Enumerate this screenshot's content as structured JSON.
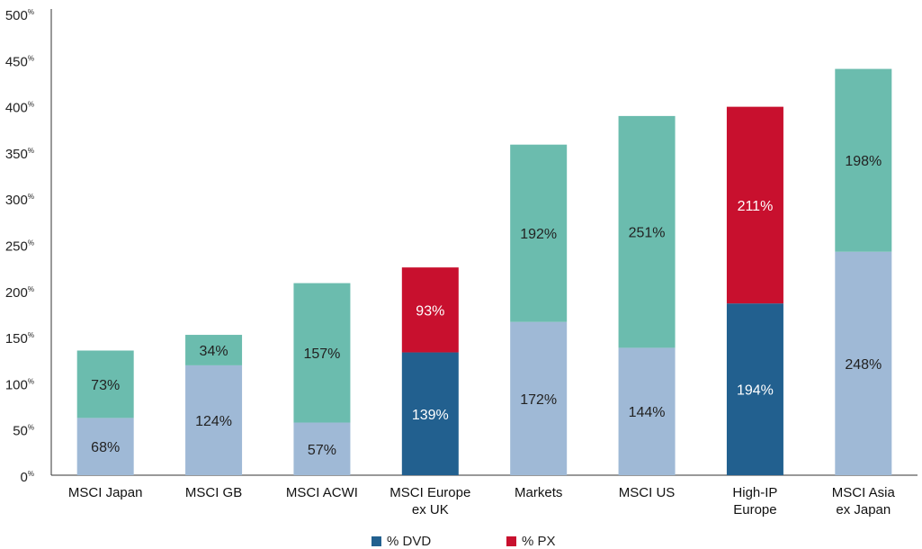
{
  "chart_data": {
    "type": "bar",
    "stacked": true,
    "categories": [
      [
        "MSCI Japan"
      ],
      [
        "MSCI GB"
      ],
      [
        "MSCI ACWI"
      ],
      [
        "MSCI Europe",
        "ex UK"
      ],
      [
        "Markets"
      ],
      [
        "MSCI US"
      ],
      [
        "High-IP",
        "Europe"
      ],
      [
        "MSCI Asia",
        "ex Japan"
      ]
    ],
    "bottom_values": [
      68,
      124,
      57,
      139,
      172,
      144,
      194,
      248
    ],
    "top_values": [
      73,
      34,
      157,
      93,
      192,
      251,
      211,
      198
    ],
    "bottom_labels": [
      "68%",
      "124%",
      "57%",
      "139%",
      "172%",
      "144%",
      "194%",
      "248%"
    ],
    "top_labels": [
      "73%",
      "34%",
      "157%",
      "93%",
      "192%",
      "251%",
      "211%",
      "198%"
    ],
    "bottom_totals_drawn": [
      62,
      119,
      57,
      133,
      166,
      138,
      186,
      242
    ],
    "totals_drawn": [
      135,
      152,
      208,
      225,
      358,
      389,
      399,
      440
    ],
    "highlight_indices": [
      3,
      6
    ],
    "colors": {
      "bottom": "#9fb9d6",
      "top": "#6bbcae",
      "bottom_highlight": "#22608f",
      "top_highlight": "#c8102e",
      "axis": "#333333"
    },
    "y_ticks": [
      "0",
      "50",
      "100",
      "150",
      "200",
      "250",
      "300",
      "350",
      "400",
      "450",
      "500"
    ],
    "y_tick_unit": "%",
    "ylim": [
      0,
      500
    ],
    "legend": [
      {
        "label": "% DVD",
        "color": "#22608f"
      },
      {
        "label": "% PX",
        "color": "#c8102e"
      }
    ],
    "legend_position": "bottom-center",
    "grid": false
  }
}
